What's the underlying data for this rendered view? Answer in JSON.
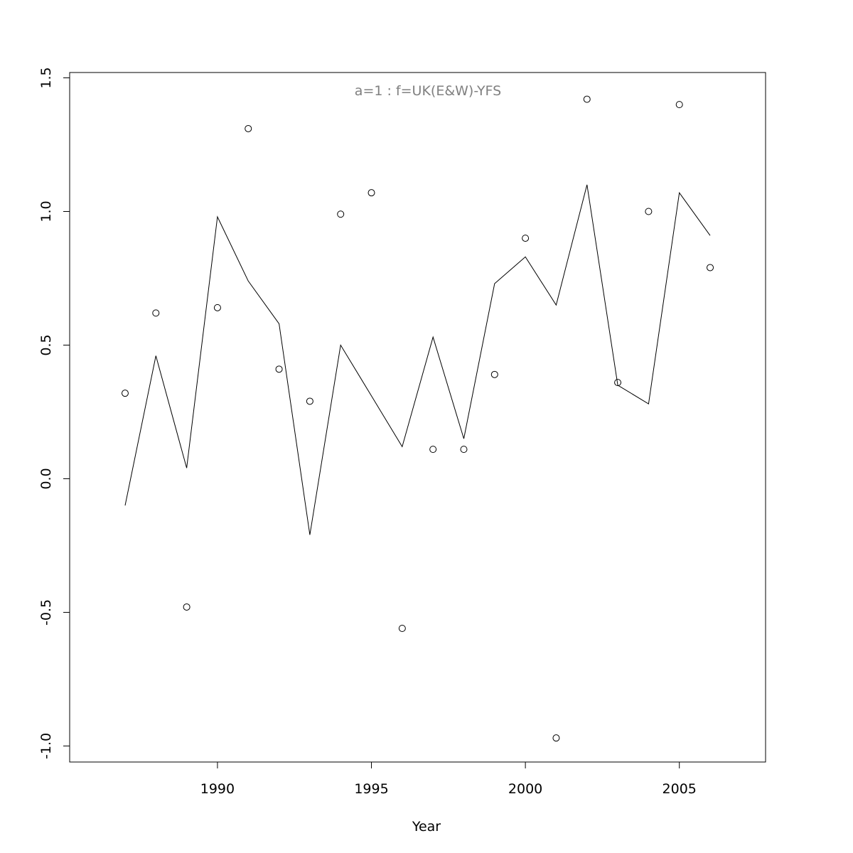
{
  "chart_data": {
    "type": "scatter",
    "title": "a=1  :  f=UK(E&W)-YFS",
    "xlabel": "Year",
    "ylabel": "",
    "xlim": [
      1985.2,
      2007.8
    ],
    "ylim": [
      -1.06,
      1.52
    ],
    "x_ticks": [
      1990,
      1995,
      2000,
      2005
    ],
    "y_ticks": [
      -1.0,
      -0.5,
      0.0,
      0.5,
      1.0,
      1.5
    ],
    "x_tick_labels": [
      "1990",
      "1995",
      "2000",
      "2005"
    ],
    "y_tick_labels": [
      "-1.0",
      "-0.5",
      "0.0",
      "0.5",
      "1.0",
      "1.5"
    ],
    "grid": false,
    "colors": {
      "title": "#808080",
      "marks": "#000000"
    },
    "series": [
      {
        "style": "points",
        "x": [
          1987,
          1988,
          1989,
          1990,
          1991,
          1992,
          1993,
          1994,
          1995,
          1996,
          1997,
          1998,
          1999,
          2000,
          2001,
          2002,
          2003,
          2004,
          2005,
          2006
        ],
        "y": [
          0.32,
          0.62,
          -0.48,
          0.64,
          1.31,
          0.41,
          0.29,
          0.99,
          1.07,
          -0.56,
          0.11,
          0.11,
          0.39,
          0.9,
          -0.97,
          1.42,
          0.36,
          1.0,
          1.4,
          0.79
        ]
      },
      {
        "style": "line",
        "x": [
          1987,
          1988,
          1989,
          1990,
          1991,
          1992,
          1993,
          1994,
          1995,
          1996,
          1997,
          1998,
          1999,
          2000,
          2001,
          2002,
          2003,
          2004,
          2005,
          2006
        ],
        "y": [
          -0.1,
          0.46,
          0.04,
          0.98,
          0.74,
          0.58,
          -0.21,
          0.5,
          0.31,
          0.12,
          0.53,
          0.15,
          0.73,
          0.83,
          0.65,
          1.1,
          0.35,
          0.28,
          1.07,
          0.91
        ]
      }
    ]
  }
}
